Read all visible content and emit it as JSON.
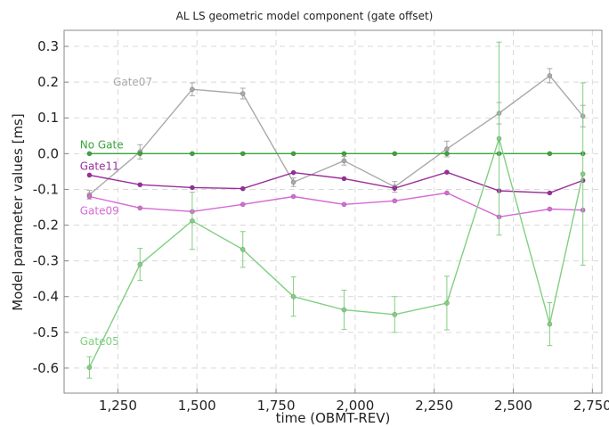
{
  "chart_data": {
    "type": "line",
    "title": "AL LS geometric model component (gate offset)",
    "xlabel": "time (OBMT-REV)",
    "ylabel": "Model parameter values [ms]",
    "xlim": [
      1080,
      2780
    ],
    "ylim": [
      -0.67,
      0.345
    ],
    "xticks": [
      1250,
      1500,
      1750,
      2000,
      2250,
      2500,
      2750
    ],
    "xtick_labels": [
      "1,250",
      "1,500",
      "1,750",
      "2,000",
      "2,250",
      "2,500",
      "2,750"
    ],
    "yticks": [
      -0.6,
      -0.5,
      -0.4,
      -0.3,
      -0.2,
      -0.1,
      0.0,
      0.1,
      0.2,
      0.3
    ],
    "ytick_labels": [
      "-0.6",
      "-0.5",
      "-0.4",
      "-0.3",
      "-0.2",
      "-0.1",
      "0.0",
      "0.1",
      "0.2",
      "0.3"
    ],
    "grid": true,
    "series": [
      {
        "name": "Gate07",
        "color": "#a9a9a9",
        "label_at": [
          1235,
          0.2
        ],
        "x": [
          1160,
          1320,
          1485,
          1645,
          1805,
          1965,
          2125,
          2290,
          2455,
          2615,
          2720
        ],
        "y": [
          -0.115,
          0.005,
          0.18,
          0.168,
          -0.08,
          -0.02,
          -0.093,
          0.013,
          0.113,
          0.218,
          0.105
        ],
        "err": [
          0.012,
          0.02,
          0.018,
          0.015,
          0.012,
          0.012,
          0.015,
          0.022,
          0.03,
          0.02,
          0.03
        ]
      },
      {
        "name": "No Gate",
        "color": "#3aa53a",
        "label_at": [
          1130,
          0.025
        ],
        "x": [
          1160,
          1320,
          1485,
          1645,
          1805,
          1965,
          2125,
          2290,
          2455,
          2615,
          2720
        ],
        "y": [
          0.0,
          0.0,
          0.0,
          0.0,
          0.0,
          0.0,
          0.0,
          0.0,
          0.0,
          0.0,
          0.0
        ],
        "err": [
          0,
          0,
          0,
          0,
          0,
          0,
          0,
          0,
          0,
          0,
          0
        ]
      },
      {
        "name": "Gate11",
        "color": "#9a2d9a",
        "label_at": [
          1130,
          -0.035
        ],
        "x": [
          1160,
          1320,
          1485,
          1645,
          1805,
          1965,
          2125,
          2290,
          2455,
          2615,
          2720
        ],
        "y": [
          -0.06,
          -0.087,
          -0.095,
          -0.098,
          -0.053,
          -0.07,
          -0.097,
          -0.052,
          -0.104,
          -0.11,
          -0.075
        ],
        "err": [
          0,
          0,
          0,
          0,
          0,
          0,
          0,
          0,
          0,
          0,
          0
        ]
      },
      {
        "name": "Gate09",
        "color": "#d46ad4",
        "label_at": [
          1130,
          -0.16
        ],
        "x": [
          1160,
          1320,
          1485,
          1645,
          1805,
          1965,
          2125,
          2290,
          2455,
          2615,
          2720
        ],
        "y": [
          -0.12,
          -0.152,
          -0.162,
          -0.142,
          -0.12,
          -0.142,
          -0.132,
          -0.11,
          -0.177,
          -0.155,
          -0.158
        ],
        "err": [
          0,
          0,
          0,
          0,
          0,
          0,
          0,
          0,
          0,
          0,
          0
        ]
      },
      {
        "name": "Gate05",
        "color": "#82cf82",
        "label_at": [
          1130,
          -0.525
        ],
        "x": [
          1160,
          1320,
          1485,
          1645,
          1805,
          1965,
          2125,
          2290,
          2455,
          2615,
          2720
        ],
        "y": [
          -0.598,
          -0.31,
          -0.188,
          -0.268,
          -0.4,
          -0.437,
          -0.45,
          -0.418,
          0.042,
          -0.477,
          -0.057
        ],
        "err": [
          0.03,
          0.045,
          0.08,
          0.05,
          0.055,
          0.055,
          0.05,
          0.075,
          0.27,
          0.06,
          0.255
        ]
      }
    ]
  }
}
